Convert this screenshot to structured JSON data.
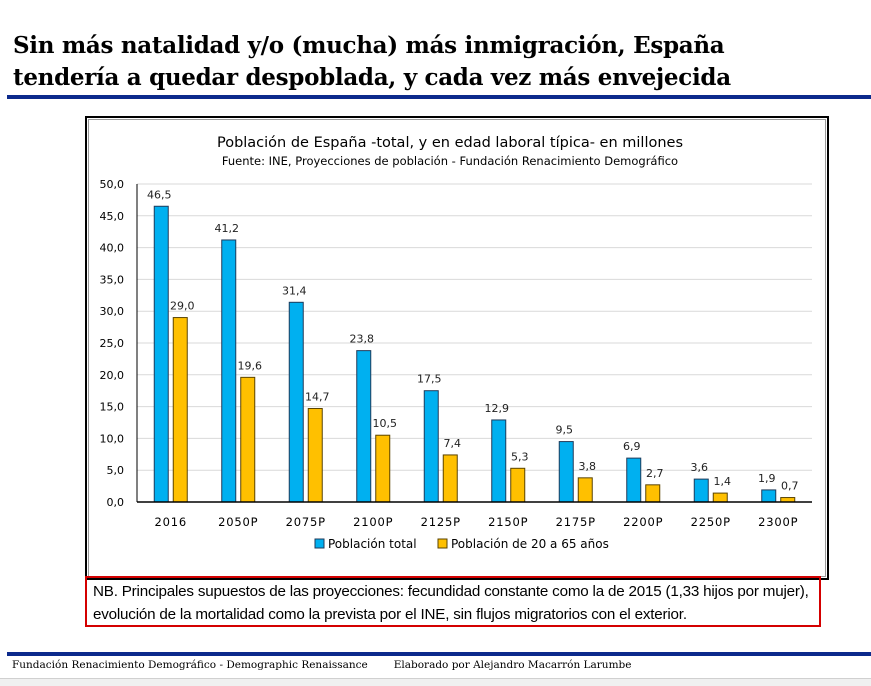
{
  "slide": {
    "headline_line1": "Sin más natalidad y/o (mucha) más inmigración, España",
    "headline_line2": "tendería a quedar despoblada, y cada vez más envejecida",
    "note": "NB. Principales supuestos de las proyecciones: fecundidad constante como la de 2015 (1,33 hijos por mujer), evolución de la mortalidad como la prevista por el INE, sin flujos migratorios con el exterior.",
    "footer_left": "Fundación Renacimiento Demográfico - Demographic Renaissance",
    "footer_right": "Elaborado por Alejandro Macarrón Larumbe"
  },
  "colors": {
    "total": "#00b0f0",
    "working_age": "#ffc000",
    "rule": "#0c2a8c",
    "note_border": "#d40000"
  },
  "chart_data": {
    "type": "bar",
    "title": "Población de España -total, y en edad laboral típica- en millones",
    "subtitle": "Fuente: INE, Proyecciones de población - Fundación Renacimiento Demográfico",
    "xlabel": "",
    "ylabel": "",
    "ylim": [
      0,
      50
    ],
    "yticks": [
      "0,0",
      "5,0",
      "10,0",
      "15,0",
      "20,0",
      "25,0",
      "30,0",
      "35,0",
      "40,0",
      "45,0",
      "50,0"
    ],
    "grid": true,
    "legend_position": "bottom",
    "categories": [
      "2016",
      "2050P",
      "2075P",
      "2100P",
      "2125P",
      "2150P",
      "2175P",
      "2200P",
      "2250P",
      "2300P"
    ],
    "series": [
      {
        "name": "Población total",
        "color": "#00b0f0",
        "values": [
          46.5,
          41.2,
          31.4,
          23.8,
          17.5,
          12.9,
          9.5,
          6.9,
          3.6,
          1.9
        ],
        "labels": [
          "46,5",
          "41,2",
          "31,4",
          "23,8",
          "17,5",
          "12,9",
          "9,5",
          "6,9",
          "3,6",
          "1,9"
        ]
      },
      {
        "name": "Población de 20 a 65 años",
        "color": "#ffc000",
        "values": [
          29.0,
          19.6,
          14.7,
          10.5,
          7.4,
          5.3,
          3.8,
          2.7,
          1.4,
          0.7
        ],
        "labels": [
          "29,0",
          "19,6",
          "14,7",
          "10,5",
          "7,4",
          "5,3",
          "3,8",
          "2,7",
          "1,4",
          "0,7"
        ]
      }
    ]
  }
}
